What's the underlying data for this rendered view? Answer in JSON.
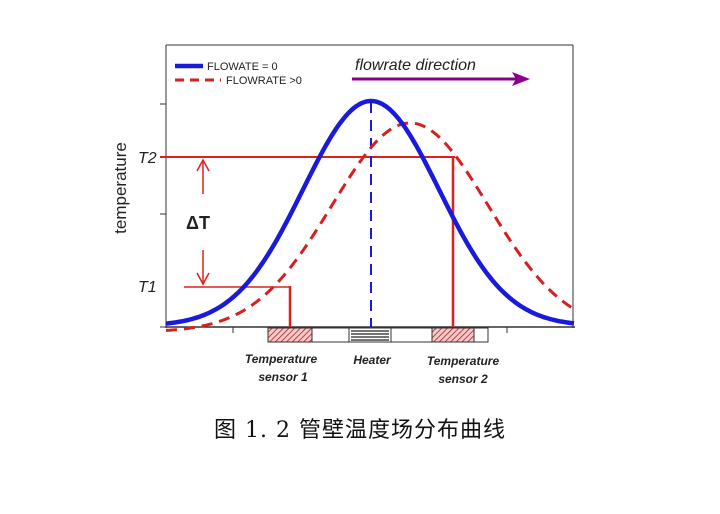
{
  "legend": {
    "items": [
      {
        "label": "FLOWATE = 0",
        "color": "#1a1adb",
        "style": "solid"
      },
      {
        "label": "FLOWRATE >0",
        "color": "#d62020",
        "style": "dashed"
      }
    ]
  },
  "flow_direction": {
    "label": "flowrate direction",
    "color": "#8b008b"
  },
  "y_axis": {
    "label": "temperature"
  },
  "levels": {
    "t2": "T2",
    "t1": "T1",
    "delta": "ΔT"
  },
  "components": {
    "sensor1": {
      "line1": "Temperature",
      "line2": "sensor 1"
    },
    "heater": {
      "label": "Heater"
    },
    "sensor2": {
      "line1": "Temperature",
      "line2": "sensor 2"
    }
  },
  "caption": "图 1. 2 管壁温度场分布曲线",
  "colors": {
    "no_flow": "#1a1adb",
    "flow": "#d62020",
    "arrow": "#8b008b",
    "guides": "#e0201c"
  }
}
